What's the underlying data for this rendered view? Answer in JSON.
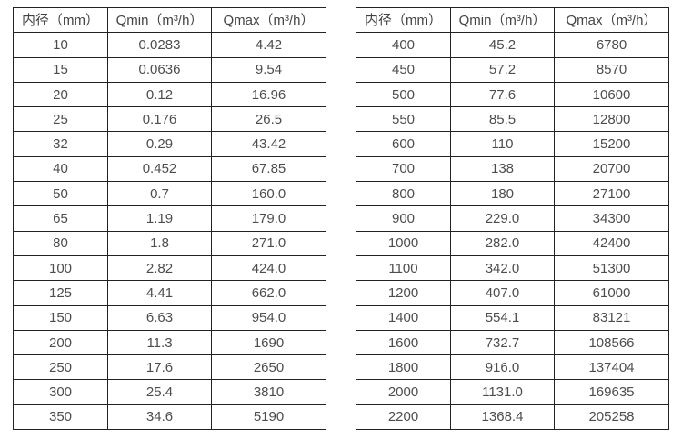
{
  "tables": [
    {
      "headers": [
        "内径（mm）",
        "Qmin（m³/h）",
        "Qmax（m³/h）"
      ],
      "rows": [
        [
          "10",
          "0.0283",
          "4.42"
        ],
        [
          "15",
          "0.0636",
          "9.54"
        ],
        [
          "20",
          "0.12",
          "16.96"
        ],
        [
          "25",
          "0.176",
          "26.5"
        ],
        [
          "32",
          "0.29",
          "43.42"
        ],
        [
          "40",
          "0.452",
          "67.85"
        ],
        [
          "50",
          "0.7",
          "160.0"
        ],
        [
          "65",
          "1.19",
          "179.0"
        ],
        [
          "80",
          "1.8",
          "271.0"
        ],
        [
          "100",
          "2.82",
          "424.0"
        ],
        [
          "125",
          "4.41",
          "662.0"
        ],
        [
          "150",
          "6.63",
          "954.0"
        ],
        [
          "200",
          "11.3",
          "1690"
        ],
        [
          "250",
          "17.6",
          "2650"
        ],
        [
          "300",
          "25.4",
          "3810"
        ],
        [
          "350",
          "34.6",
          "5190"
        ]
      ]
    },
    {
      "headers": [
        "内径（mm）",
        "Qmin（m³/h）",
        "Qmax（m³/h）"
      ],
      "rows": [
        [
          "400",
          "45.2",
          "6780"
        ],
        [
          "450",
          "57.2",
          "8570"
        ],
        [
          "500",
          "77.6",
          "10600"
        ],
        [
          "550",
          "85.5",
          "12800"
        ],
        [
          "600",
          "110",
          "15200"
        ],
        [
          "700",
          "138",
          "20700"
        ],
        [
          "800",
          "180",
          "27100"
        ],
        [
          "900",
          "229.0",
          "34300"
        ],
        [
          "1000",
          "282.0",
          "42400"
        ],
        [
          "1100",
          "342.0",
          "51300"
        ],
        [
          "1200",
          "407.0",
          "61000"
        ],
        [
          "1400",
          "554.1",
          "83121"
        ],
        [
          "1600",
          "732.7",
          "108566"
        ],
        [
          "1800",
          "916.0",
          "137404"
        ],
        [
          "2000",
          "1131.0",
          "169635"
        ],
        [
          "2200",
          "1368.4",
          "205258"
        ]
      ]
    }
  ],
  "colors": {
    "border": "#222222",
    "text": "#4d4d4d",
    "background": "#ffffff"
  }
}
